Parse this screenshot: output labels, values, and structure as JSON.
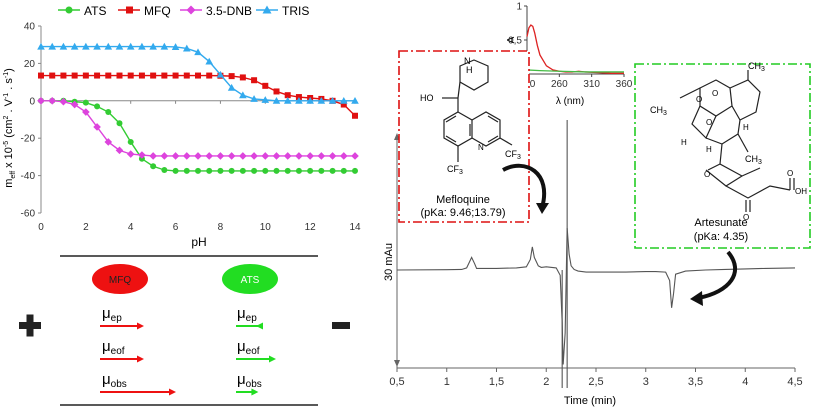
{
  "colors": {
    "ats": "#33cc33",
    "mfq": "#e01010",
    "dnb": "#dd44dd",
    "tris": "#33aaee",
    "mfq_box": "#dd1111",
    "ats_box": "#22cc22",
    "spectrum_red": "#dd2222",
    "spectrum_green": "#44bb44",
    "dark": "#222222"
  },
  "chart_data": [
    {
      "type": "line",
      "id": "mobility_vs_ph",
      "xlabel": "pH",
      "ylabel": "m_eff x 10^-5 (cm^2 . V^-1 . s^-1)",
      "ylabel_parts": {
        "prefix": "m",
        "sub": "eff",
        "mid": " x 10",
        "exp": "-5",
        "rest1": " (cm",
        "exp2": "2",
        "rest2": " . V",
        "exp3": "-1",
        "rest3": " . s",
        "exp4": "-1",
        "rest4": ")"
      },
      "xlim": [
        0,
        14
      ],
      "ylim": [
        -60,
        40
      ],
      "xticks": [
        "0",
        "2",
        "4",
        "6",
        "8",
        "10",
        "12",
        "14"
      ],
      "yticks": [
        "40",
        "20",
        "0",
        "-20",
        "-40",
        "-60"
      ],
      "grid": false,
      "legend_position": "top",
      "series": [
        {
          "name": "ATS",
          "key": "ats",
          "marker": "circle",
          "x": [
            0,
            0.5,
            1,
            1.5,
            2,
            2.5,
            3,
            3.5,
            4,
            4.5,
            5,
            5.5,
            6,
            6.5,
            7,
            7.5,
            8,
            8.5,
            9,
            9.5,
            10,
            10.5,
            11,
            11.5,
            12,
            12.5,
            13,
            13.5,
            14
          ],
          "y": [
            0,
            0,
            0,
            -0.5,
            -1,
            -3,
            -6,
            -12,
            -22,
            -31,
            -35,
            -37,
            -37.5,
            -37.5,
            -37.5,
            -37.5,
            -37.5,
            -37.5,
            -37.5,
            -37.5,
            -37.5,
            -37.5,
            -37.5,
            -37.5,
            -37.5,
            -37.5,
            -37.5,
            -37.5,
            -37.5
          ]
        },
        {
          "name": "MFQ",
          "key": "mfq",
          "marker": "square",
          "x": [
            0,
            0.5,
            1,
            1.5,
            2,
            2.5,
            3,
            3.5,
            4,
            4.5,
            5,
            5.5,
            6,
            6.5,
            7,
            7.5,
            8,
            8.5,
            9,
            9.5,
            10,
            10.5,
            11,
            11.5,
            12,
            12.5,
            13,
            13.5,
            14
          ],
          "y": [
            13.5,
            13.5,
            13.5,
            13.5,
            13.5,
            13.5,
            13.5,
            13.5,
            13.5,
            13.5,
            13.5,
            13.5,
            13.5,
            13.5,
            13.5,
            13.5,
            13.4,
            13.2,
            12.5,
            11,
            8,
            5,
            3,
            2,
            1.5,
            1,
            0,
            -2,
            -8
          ]
        },
        {
          "name": "3.5-DNB",
          "key": "dnb",
          "marker": "diamond",
          "x": [
            0,
            0.5,
            1,
            1.5,
            2,
            2.5,
            3,
            3.5,
            4,
            4.5,
            5,
            5.5,
            6,
            6.5,
            7,
            7.5,
            8,
            8.5,
            9,
            9.5,
            10,
            10.5,
            11,
            11.5,
            12,
            12.5,
            13,
            13.5,
            14
          ],
          "y": [
            0,
            0,
            -0.5,
            -2,
            -6,
            -14,
            -22,
            -26.5,
            -28.5,
            -29,
            -29.5,
            -29.5,
            -29.5,
            -29.5,
            -29.5,
            -29.5,
            -29.5,
            -29.5,
            -29.5,
            -29.5,
            -29.5,
            -29.5,
            -29.5,
            -29.5,
            -29.5,
            -29.5,
            -29.5,
            -29.5,
            -29.5
          ]
        },
        {
          "name": "TRIS",
          "key": "tris",
          "marker": "triangle",
          "x": [
            0,
            0.5,
            1,
            1.5,
            2,
            2.5,
            3,
            3.5,
            4,
            4.5,
            5,
            5.5,
            6,
            6.5,
            7,
            7.5,
            8,
            8.5,
            9,
            9.5,
            10,
            10.5,
            11,
            11.5,
            12,
            12.5,
            13,
            13.5,
            14
          ],
          "y": [
            29,
            29,
            29,
            29,
            29,
            29,
            29,
            29,
            29,
            29,
            29,
            29,
            28.8,
            28,
            26,
            21,
            14,
            7,
            3,
            1,
            0.5,
            0,
            0,
            0,
            0,
            0,
            0,
            0,
            0
          ]
        }
      ]
    },
    {
      "type": "line",
      "id": "electropherogram",
      "xlabel": "Time (min)",
      "ylabel": "30 mAu",
      "xlim": [
        0.5,
        4.5
      ],
      "xticks": [
        "0,5",
        "1",
        "1,5",
        "2",
        "2,5",
        "3",
        "3,5",
        "4",
        "4,5"
      ],
      "x": [
        0.5,
        1.0,
        1.15,
        1.2,
        1.23,
        1.25,
        1.28,
        1.3,
        1.5,
        1.7,
        1.8,
        1.84,
        1.86,
        1.88,
        1.92,
        1.95,
        2.0,
        2.1,
        2.14,
        2.16,
        2.17,
        2.19,
        2.21,
        2.23,
        2.25,
        2.28,
        2.32,
        2.4,
        2.6,
        2.8,
        3.0,
        3.1,
        3.2,
        3.24,
        3.26,
        3.28,
        3.3,
        3.4,
        3.6,
        3.8,
        4.0,
        4.2,
        4.5
      ],
      "y": [
        0,
        0.3,
        0.5,
        2,
        8,
        12,
        6,
        1.5,
        1.5,
        2,
        3,
        10,
        22,
        12,
        4,
        2.5,
        3,
        2,
        -5,
        -50,
        -90,
        -60,
        40,
        15,
        4,
        0.5,
        -1,
        -2,
        -2,
        -2,
        -1.5,
        -1.5,
        -2,
        -10,
        -36,
        -22,
        -4,
        -1,
        0,
        0.5,
        1,
        1.5,
        2
      ]
    },
    {
      "type": "line",
      "id": "uv_spectrum",
      "xlabel": "λ (nm)",
      "ylabel": "A",
      "xlim": [
        210,
        360
      ],
      "ylim": [
        0,
        1
      ],
      "xticks": [
        "210",
        "260",
        "310",
        "360"
      ],
      "yticks": [
        "0",
        "0,5",
        "1"
      ],
      "series": [
        {
          "key": "spectrum_red",
          "x": [
            210,
            213,
            216,
            219,
            222,
            226,
            230,
            240,
            250,
            260,
            270,
            280,
            290,
            300,
            320,
            340,
            360
          ],
          "y": [
            0.55,
            0.68,
            0.72,
            0.7,
            0.6,
            0.42,
            0.28,
            0.12,
            0.06,
            0.04,
            0.03,
            0.03,
            0.04,
            0.03,
            0.02,
            0.01,
            0.01
          ]
        },
        {
          "key": "spectrum_green",
          "x": [
            210,
            230,
            260,
            300,
            330,
            360
          ],
          "y": [
            0.06,
            0.05,
            0.04,
            0.03,
            0.03,
            0.03
          ]
        }
      ]
    }
  ],
  "legend": {
    "ats": "ATS",
    "mfq": "MFQ",
    "dnb": "3.5-DNB",
    "tris": "TRIS"
  },
  "scheme": {
    "mfq_label": "MFQ",
    "ats_label": "ATS",
    "plus": "+",
    "minus": "-",
    "mu": "μ",
    "ep": "ep",
    "eof": "eof",
    "obs": "obs",
    "mfq_arrows": {
      "ep": 0.55,
      "eof": 0.55,
      "obs": 0.95
    },
    "ats_arrows": {
      "ep": -0.25,
      "eof": 0.5,
      "obs": 0.28
    }
  },
  "mefloquine": {
    "name": "Mefloquine",
    "pka": "(pKa: 9.46;13.79)",
    "cf3_a": "CF",
    "cf3_b": "CF",
    "three": "3",
    "n": "N",
    "h": "H",
    "ho": "HO"
  },
  "artesunate": {
    "name": "Artesunate",
    "pka": "(pKa: 4.35)",
    "ch3": "CH",
    "three": "3",
    "o": "O",
    "oh": "OH",
    "h": "H"
  }
}
